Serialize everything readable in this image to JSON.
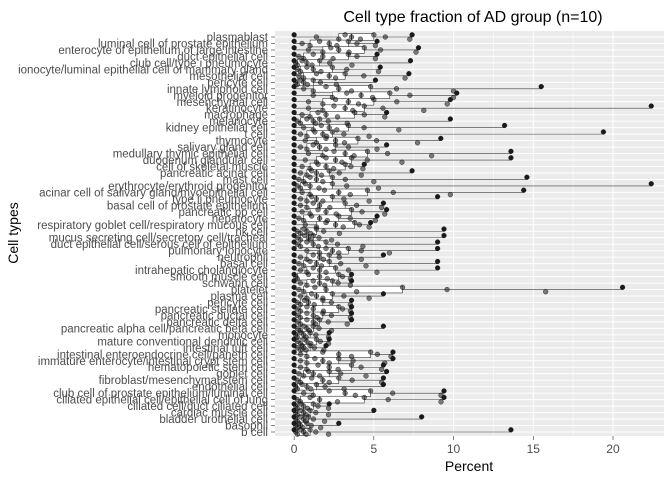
{
  "chart_data": {
    "type": "boxplot",
    "title": "Cell type fraction of AD group (n=10)",
    "xlabel": "Percent",
    "ylabel": "Cell types",
    "xlim": [
      -1.2,
      23.2
    ],
    "x_ticks": [
      0,
      5,
      10,
      15,
      20
    ],
    "grid": true,
    "legend": "none",
    "colors": {
      "panel_bg": "#ebebeb",
      "grid_major": "#ffffff",
      "box_fill": "#ffffff",
      "box_line": "#333333",
      "point": "#1a1a1a",
      "tick_text": "#4d4d4d"
    },
    "categories": [
      "plasmablast",
      "luminal cell of prostate epithelium",
      "enterocyte of epithelium of large intestine",
      "duct epithelial cell",
      "club cell/type i pneumocyte",
      "ionocyte/luminal epithelial cell of mammary gland",
      "mesothelial cell",
      "pericyte cell",
      "innate lymphoid cell",
      "myeloid progenitor",
      "mesenchymal cell",
      "keratinocyte",
      "macrophage",
      "melanocyte",
      "kidney epithelial cell",
      "t cell",
      "thymocyte",
      "salivary gland cell",
      "medullary thymic epithelial cell",
      "duodenum glandular cell",
      "cell of skeletal muscle",
      "pancreatic acinar cell",
      "mast cell",
      "erythrocyte/erythroid progenitor",
      "acinar cell of salivary gland/myoepithelial cell",
      "type ii pneumocyte",
      "basal cell of prostate epithelium",
      "pancreatic pp cell",
      "hepatocyte",
      "respiratory goblet cell/respiratory mucous cell",
      "nk cell",
      "mucus secreting cell/secretory cell/tracheal",
      "duct epithelial cell/serous cell of epithelium",
      "pulmonary ionocyte",
      "neutrophil",
      "basal cell",
      "intrahepatic cholangiocyte",
      "smooth muscle cell",
      "schwann cell",
      "platelet",
      "plasma cell",
      "pericyte cell",
      "pancreatic stellate cell",
      "pancreatic ductal cell",
      "pancreatic delta cell",
      "pancreatic alpha cell/pancreatic beta cell",
      "monocyte",
      "mature conventional dendritic cell",
      "intestinal tuft cell",
      "intestinal enteroendocrine cell/paneth cell",
      "immature enterocyte/intestinal crypt stem cell",
      "hematopoietic stem cell",
      "goblet cell",
      "fibroblast/mesenchymal stem cell",
      "endothelial cell",
      "club cell of prostate epithelium/luminal cell",
      "ciliated epithelial cell/epithelial cell of lung",
      "ciliated cell/duct ciliated cell",
      "cardiac muscle cell",
      "bladder urothelial cell",
      "basophil",
      "b cell"
    ],
    "box_stats": [
      [
        0,
        2.8,
        3.6,
        5.0,
        7.4
      ],
      [
        0,
        1.0,
        2.2,
        3.4,
        5.2
      ],
      [
        0,
        1.8,
        2.8,
        4.4,
        7.8
      ],
      [
        0,
        0.6,
        1.8,
        3.4,
        5.2
      ],
      [
        0,
        0.2,
        0.8,
        1.6,
        7.3
      ],
      [
        0,
        0.4,
        1.2,
        2.4,
        5.4
      ],
      [
        0,
        0.6,
        2.2,
        3.2,
        7.2
      ],
      [
        0,
        0.2,
        0.6,
        1.2,
        5.1
      ],
      [
        0,
        1.2,
        2.8,
        4.8,
        15.5
      ],
      [
        0,
        2.4,
        4.2,
        6.0,
        10.2
      ],
      [
        0,
        1.8,
        3.4,
        5.0,
        9.8
      ],
      [
        0,
        1.8,
        3.2,
        4.4,
        22.4
      ],
      [
        0,
        1.0,
        2.0,
        3.8,
        5.8
      ],
      [
        0,
        0.4,
        1.2,
        1.6,
        9.8
      ],
      [
        0,
        1.2,
        2.2,
        3.4,
        13.2
      ],
      [
        0,
        0.8,
        1.8,
        2.4,
        19.4
      ],
      [
        0,
        1.4,
        2.6,
        4.0,
        9.2
      ],
      [
        0,
        0.8,
        1.6,
        2.6,
        5.8
      ],
      [
        0,
        1.8,
        3.2,
        4.6,
        13.6
      ],
      [
        0,
        1.4,
        2.6,
        3.6,
        13.6
      ],
      [
        0,
        1.0,
        2.0,
        3.2,
        4.4
      ],
      [
        0,
        0.8,
        1.4,
        2.2,
        7.4
      ],
      [
        0,
        0.6,
        1.4,
        2.4,
        14.6
      ],
      [
        0,
        0.4,
        1.0,
        2.4,
        22.4
      ],
      [
        0,
        1.0,
        2.8,
        4.6,
        14.4
      ],
      [
        0,
        0.8,
        1.4,
        2.4,
        9.0
      ],
      [
        0,
        0.8,
        1.6,
        3.2,
        5.6
      ],
      [
        0,
        1.0,
        2.0,
        3.6,
        5.8
      ],
      [
        0,
        0.6,
        1.6,
        2.8,
        5.2
      ],
      [
        0,
        1.4,
        2.6,
        3.8,
        4.8
      ],
      [
        0,
        0.4,
        0.8,
        1.4,
        9.4
      ],
      [
        0,
        0.4,
        0.9,
        1.2,
        9.4
      ],
      [
        0,
        0.4,
        1.2,
        2.0,
        9.0
      ],
      [
        0,
        1.6,
        2.4,
        3.4,
        9.0
      ],
      [
        0,
        0.8,
        1.6,
        2.2,
        5.6
      ],
      [
        0,
        0.6,
        1.4,
        2.2,
        9.0
      ],
      [
        0,
        0.8,
        1.6,
        2.6,
        9.0
      ],
      [
        0,
        0.2,
        1.6,
        2.8,
        3.6
      ],
      [
        0,
        0.8,
        1.6,
        2.4,
        3.6
      ],
      [
        0,
        0.6,
        2.0,
        6.8,
        20.6
      ],
      [
        0,
        0.8,
        1.4,
        2.4,
        5.6
      ],
      [
        0,
        0.4,
        0.9,
        1.8,
        3.6
      ],
      [
        0,
        0.4,
        1.2,
        2.8,
        3.6
      ],
      [
        0,
        0.4,
        1.2,
        1.8,
        3.6
      ],
      [
        0,
        0.4,
        1.2,
        1.6,
        3.6
      ],
      [
        0,
        0.4,
        0.8,
        1.2,
        5.6
      ],
      [
        0,
        0.2,
        0.6,
        1.0,
        2.2
      ],
      [
        0,
        0.4,
        0.8,
        1.4,
        2.2
      ],
      [
        0,
        0.4,
        0.6,
        1.0,
        2.0
      ],
      [
        0,
        0.8,
        2.8,
        4.8,
        6.2
      ],
      [
        0,
        0.8,
        1.8,
        2.8,
        6.2
      ],
      [
        0,
        0.8,
        2.2,
        3.6,
        5.6
      ],
      [
        0,
        0.6,
        1.2,
        2.2,
        5.8
      ],
      [
        0,
        0.4,
        1.8,
        2.8,
        5.6
      ],
      [
        0,
        0.2,
        0.8,
        1.4,
        5.6
      ],
      [
        0,
        1.2,
        3.2,
        4.8,
        9.4
      ],
      [
        0,
        0.4,
        1.6,
        4.4,
        9.4
      ],
      [
        0,
        0.2,
        0.6,
        1.2,
        2.2
      ],
      [
        0,
        0.2,
        0.6,
        1.0,
        5.0
      ],
      [
        0,
        0.2,
        0.6,
        0.9,
        8.0
      ],
      [
        0,
        0.2,
        0.4,
        0.8,
        2.8
      ],
      [
        0,
        0.2,
        0.6,
        1.0,
        13.6
      ]
    ]
  }
}
